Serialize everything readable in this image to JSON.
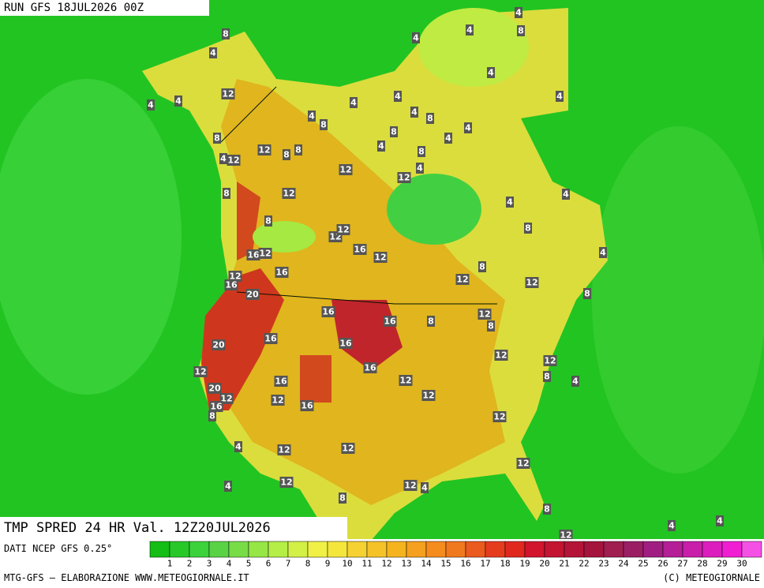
{
  "header": {
    "run": "RUN GFS 18JUL2026 00Z"
  },
  "footer": {
    "field": "TMP SPRED 24 HR Val. 12Z20JUL2026",
    "source": "DATI NCEP GFS 0.25°",
    "credit": "MTG-GFS — ELABORAZIONE WWW.METEOGIORNALE.IT",
    "copyright": "(C) METEOGIORNALE"
  },
  "scale": {
    "ticks": [
      1,
      2,
      3,
      4,
      5,
      6,
      7,
      8,
      9,
      10,
      11,
      12,
      13,
      14,
      15,
      16,
      17,
      18,
      19,
      20,
      21,
      22,
      23,
      24,
      25,
      26,
      27,
      28,
      29,
      30
    ],
    "colors": [
      "#14be14",
      "#28c828",
      "#3cd23c",
      "#5ad246",
      "#78dc46",
      "#96e646",
      "#b4ee46",
      "#d2f046",
      "#f0f046",
      "#f5e63c",
      "#f5d232",
      "#f5c328",
      "#f5b41e",
      "#f5a01e",
      "#f58c1e",
      "#f0781e",
      "#eb5a1e",
      "#e63c1e",
      "#e1281e",
      "#d2142d",
      "#c31432",
      "#b41437",
      "#a5143c",
      "#a01e50",
      "#9b1e64",
      "#a01e82",
      "#b41e96",
      "#c81eaa",
      "#dc1ebe",
      "#f01ed2",
      "#f550e6"
    ]
  },
  "map_labels": [
    8,
    4,
    4,
    4,
    12,
    8,
    4,
    12,
    12,
    8,
    8,
    8,
    12,
    12,
    8,
    12,
    12,
    16,
    12,
    16,
    12,
    12,
    16,
    16,
    20,
    16,
    16,
    16,
    16,
    20,
    12,
    16,
    16,
    12,
    20,
    12,
    12,
    12,
    16,
    16,
    8,
    12,
    4,
    12,
    12,
    12,
    12,
    4,
    12,
    4,
    8,
    8,
    12,
    4,
    4,
    12,
    12,
    8,
    8,
    12,
    8,
    12,
    12,
    8,
    4,
    8,
    4,
    8,
    4,
    4,
    12,
    4,
    8,
    8,
    4,
    4,
    8,
    4,
    4,
    4,
    4,
    8,
    4,
    4,
    4,
    8,
    4,
    4,
    4
  ]
}
